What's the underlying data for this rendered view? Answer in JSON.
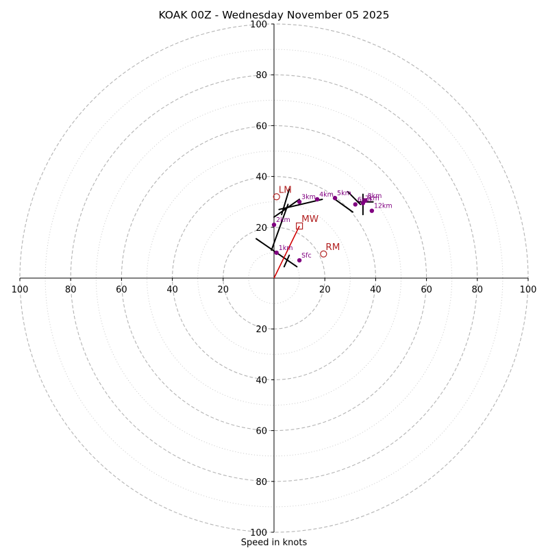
{
  "chart_data": {
    "type": "scatter",
    "title": "KOAK 00Z - Wednesday November 05 2025",
    "xlabel": "Speed in knots",
    "ylabel": "",
    "xlim": [
      -100,
      100
    ],
    "ylim": [
      -100,
      100
    ],
    "rings_major": [
      20,
      40,
      60,
      80,
      100
    ],
    "rings_minor": [
      10,
      30,
      50,
      70,
      90
    ],
    "x_ticks": [
      "100",
      "80",
      "60",
      "40",
      "20",
      "20",
      "40",
      "60",
      "80",
      "100"
    ],
    "x_tick_values": [
      -100,
      -80,
      -60,
      -40,
      -20,
      20,
      40,
      60,
      80,
      100
    ],
    "y_ticks": [
      "100",
      "80",
      "60",
      "40",
      "20",
      "20",
      "40",
      "60",
      "80",
      "100"
    ],
    "y_tick_values": [
      100,
      80,
      60,
      40,
      20,
      -20,
      -40,
      -60,
      -80,
      -100
    ],
    "hodograph": [
      {
        "label": "Sfc",
        "u": 10,
        "v": 7
      },
      {
        "label": "1km",
        "u": 1,
        "v": 10
      },
      {
        "label": "2km",
        "u": 0,
        "v": 21
      },
      {
        "label": "3km",
        "u": 10,
        "v": 30
      },
      {
        "label": "4km",
        "u": 17,
        "v": 31
      },
      {
        "label": "5km",
        "u": 24,
        "v": 31.5
      },
      {
        "label": "6km",
        "u": 32,
        "v": 29
      },
      {
        "label": "7km",
        "u": 35,
        "v": 29.5
      },
      {
        "label": "8km",
        "u": 36,
        "v": 30.5
      },
      {
        "label": "12km",
        "u": 38.5,
        "v": 26.5
      }
    ],
    "wind_barbs": [
      {
        "x1": 9,
        "y1": 4.5,
        "x2": -7,
        "y2": 15.5
      },
      {
        "x1": 4,
        "y1": 4.5,
        "x2": 6,
        "y2": 9
      },
      {
        "x1": 3,
        "y1": 25,
        "x2": 6,
        "y2": 35
      },
      {
        "x1": -1,
        "y1": 11,
        "x2": 5.5,
        "y2": 29
      },
      {
        "x1": 0,
        "y1": 24,
        "x2": 10,
        "y2": 31
      },
      {
        "x1": 2,
        "y1": 27,
        "x2": 19,
        "y2": 31
      },
      {
        "x1": 24,
        "y1": 31,
        "x2": 31,
        "y2": 26
      },
      {
        "x1": 29,
        "y1": 34,
        "x2": 34,
        "y2": 29
      },
      {
        "x1": 35,
        "y1": 33,
        "x2": 35,
        "y2": 25
      },
      {
        "x1": 33,
        "y1": 30,
        "x2": 39,
        "y2": 30
      }
    ],
    "mean_wind": {
      "label": "MW",
      "u": 10,
      "v": 20.5
    },
    "right_mover": {
      "label": "RM",
      "u": 19.5,
      "v": 9.5
    },
    "left_mover": {
      "label": "LM",
      "u": 1,
      "v": 32
    },
    "shear_vector": {
      "u1": 0,
      "v1": 0,
      "u2": 10,
      "v2": 20.5
    },
    "colors": {
      "hodograph_points": "#800080",
      "hodograph_line": "#000000",
      "motion": "#b22222",
      "shear": "#d00000",
      "ring_major": "#b3b3b3",
      "ring_minor": "#c8c8c8",
      "axis": "#000000"
    }
  }
}
